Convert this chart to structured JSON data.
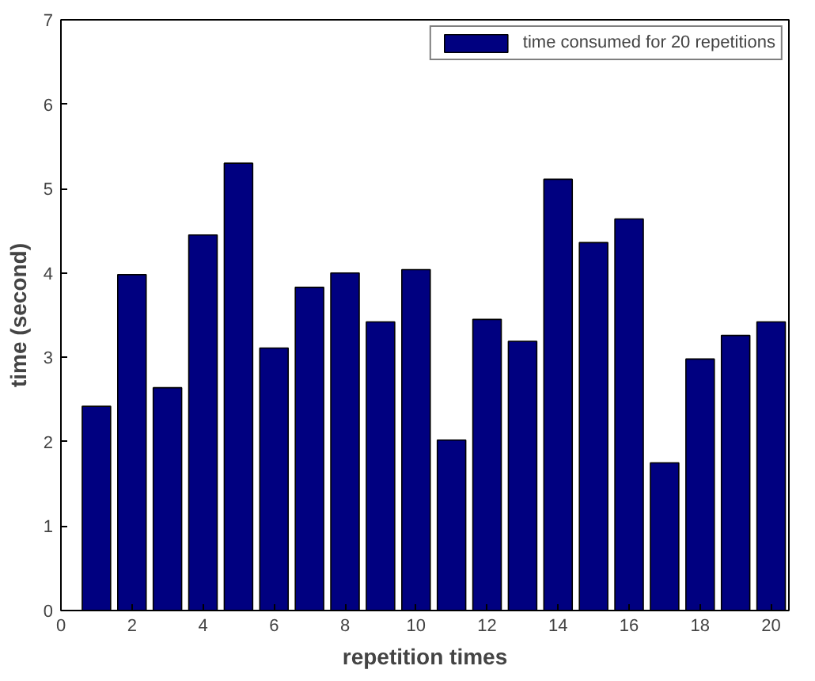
{
  "chart_data": {
    "type": "bar",
    "xlabel": "repetition times",
    "ylabel": "time (second)",
    "x": [
      1,
      2,
      3,
      4,
      5,
      6,
      7,
      8,
      9,
      10,
      11,
      12,
      13,
      14,
      15,
      16,
      17,
      18,
      19,
      20
    ],
    "series": [
      {
        "name": "time consumed for 20 repetitions",
        "color": "#000080",
        "values": [
          2.42,
          3.98,
          2.64,
          4.45,
          5.3,
          3.11,
          3.83,
          4.0,
          3.42,
          4.04,
          2.02,
          3.45,
          3.19,
          5.11,
          4.36,
          4.64,
          1.75,
          2.98,
          3.26,
          3.42
        ]
      }
    ],
    "xlim": [
      0,
      20.5
    ],
    "ylim": [
      0,
      7
    ],
    "xticks": [
      0,
      2,
      4,
      6,
      8,
      10,
      12,
      14,
      16,
      18,
      20
    ],
    "yticks": [
      0,
      1,
      2,
      3,
      4,
      5,
      6,
      7
    ],
    "grid": false,
    "legend": "top right"
  }
}
